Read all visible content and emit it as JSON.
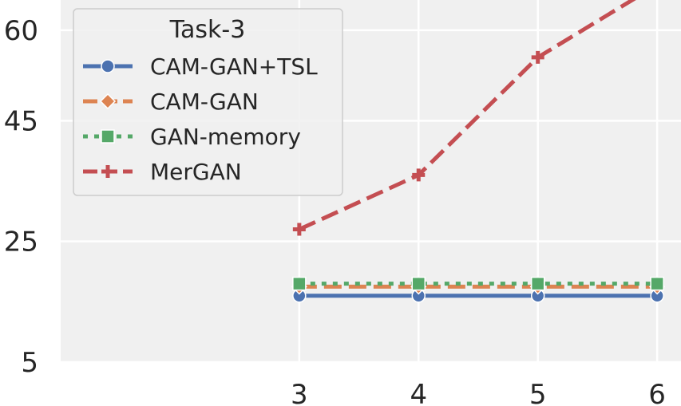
{
  "chart_data": {
    "type": "line",
    "x": [
      3,
      4,
      5,
      6
    ],
    "xticks": [
      "3",
      "4",
      "5",
      "6"
    ],
    "yticks": [
      "5",
      "25",
      "45",
      "60"
    ],
    "xlim": [
      1,
      6.2
    ],
    "ylim": [
      5,
      65
    ],
    "grid": true,
    "legend": {
      "title": "Task-3",
      "placement": "upper-left"
    },
    "series": [
      {
        "name": "CAM-GAN+TSL",
        "values": [
          16.0,
          16.0,
          16.0,
          16.0
        ],
        "color": "#4c72b0",
        "marker": "circle",
        "dash": "solid"
      },
      {
        "name": "CAM-GAN",
        "values": [
          17.5,
          17.5,
          17.5,
          17.5
        ],
        "color": "#dd8452",
        "marker": "diamond",
        "dash": "dashed"
      },
      {
        "name": "GAN-memory",
        "values": [
          18.0,
          18.0,
          18.0,
          18.0
        ],
        "color": "#55a868",
        "marker": "square",
        "dash": "dotted"
      },
      {
        "name": "MerGAN",
        "values": [
          27.0,
          36.0,
          55.5,
          67.5
        ],
        "color": "#c44e52",
        "marker": "plus",
        "dash": "dashed"
      }
    ]
  }
}
